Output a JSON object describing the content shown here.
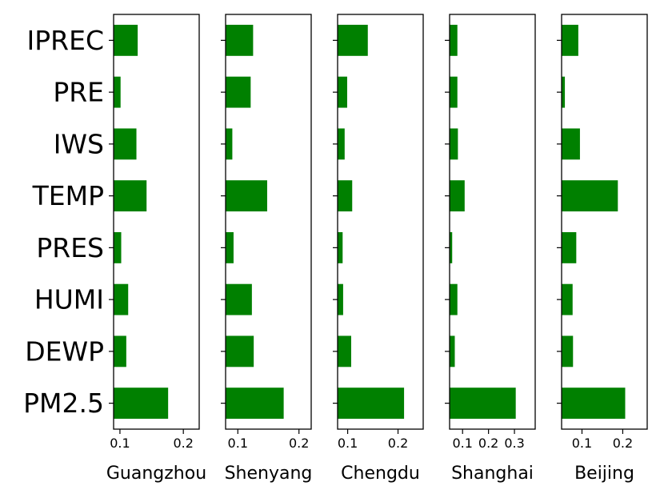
{
  "chart_data": {
    "type": "bar",
    "orientation": "horizontal",
    "categories": [
      "IPREC",
      "PRE",
      "IWS",
      "TEMP",
      "PRES",
      "HUMI",
      "DEWP",
      "PM2.5"
    ],
    "bar_color": "#008000",
    "panels": [
      {
        "xlabel": "Guangzhou",
        "xlim": [
          0.09,
          0.225
        ],
        "xticks": [
          0.1,
          0.2
        ],
        "xtick_labels": [
          "0.1",
          "0.2"
        ],
        "values": [
          0.128,
          0.101,
          0.126,
          0.142,
          0.102,
          0.113,
          0.11,
          0.176
        ]
      },
      {
        "xlabel": "Shenyang",
        "xlim": [
          0.08,
          0.22
        ],
        "xticks": [
          0.1,
          0.2
        ],
        "xtick_labels": [
          "0.1",
          "0.2"
        ],
        "values": [
          0.125,
          0.121,
          0.091,
          0.148,
          0.093,
          0.123,
          0.126,
          0.175
        ]
      },
      {
        "xlabel": "Chengdu",
        "xlim": [
          0.08,
          0.25
        ],
        "xticks": [
          0.1,
          0.2
        ],
        "xtick_labels": [
          "0.1",
          "0.2"
        ],
        "values": [
          0.14,
          0.099,
          0.094,
          0.109,
          0.09,
          0.091,
          0.107,
          0.212
        ]
      },
      {
        "xlabel": "Shanghai",
        "xlim": [
          0.05,
          0.38
        ],
        "xticks": [
          0.1,
          0.2,
          0.3
        ],
        "xtick_labels": [
          "0.1",
          "0.2",
          "0.3"
        ],
        "values": [
          0.08,
          0.08,
          0.082,
          0.108,
          0.06,
          0.08,
          0.07,
          0.305
        ]
      },
      {
        "xlabel": "Beijing",
        "xlim": [
          0.05,
          0.26
        ],
        "xticks": [
          0.1,
          0.2
        ],
        "xtick_labels": [
          "0.1",
          "0.2"
        ],
        "values": [
          0.091,
          0.058,
          0.095,
          0.188,
          0.086,
          0.077,
          0.078,
          0.206
        ]
      }
    ]
  }
}
